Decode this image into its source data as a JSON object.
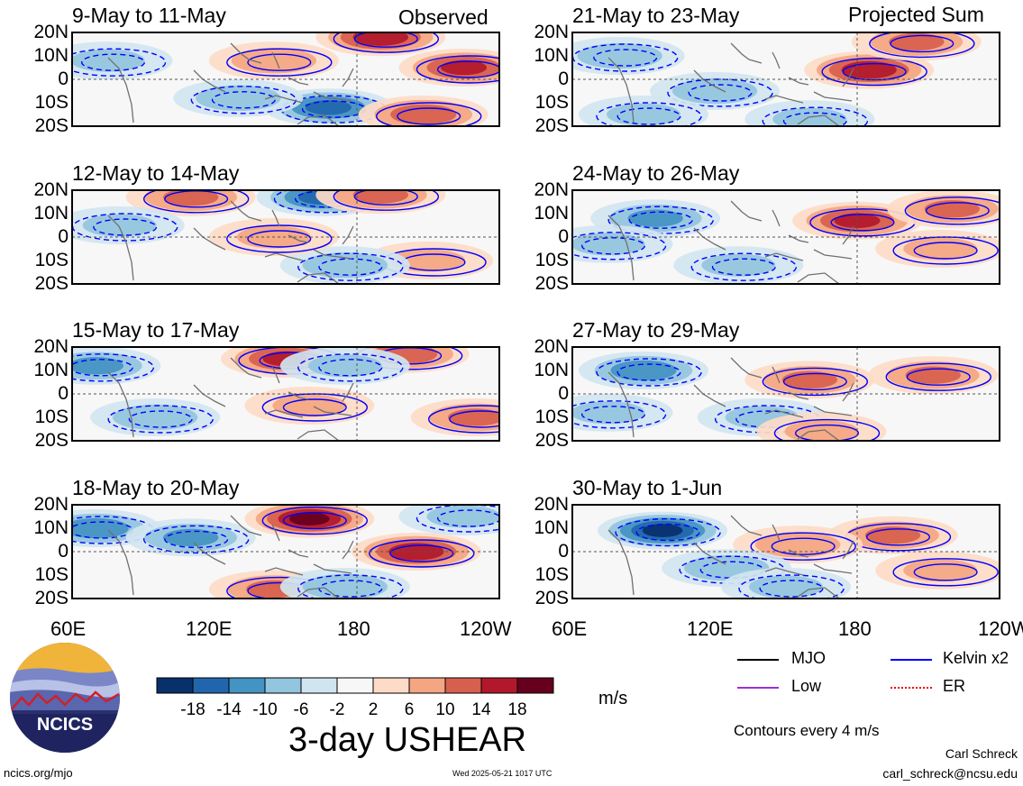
{
  "panel_headers": {
    "left": "Observed",
    "right": "Projected Sum"
  },
  "lat_ticks": [
    "20N",
    "10N",
    "0",
    "10S",
    "20S"
  ],
  "lon_ticks": [
    "60E",
    "120E",
    "180",
    "120W"
  ],
  "colorbar": {
    "tick_labels": [
      "-18",
      "-14",
      "-10",
      "-6",
      "-2",
      "2",
      "6",
      "10",
      "14",
      "18"
    ],
    "colors": [
      "#08306b",
      "#2166ac",
      "#4393c3",
      "#92c5de",
      "#d1e5f0",
      "#f7f7f7",
      "#fddbc7",
      "#f4a582",
      "#d6604d",
      "#b2182b",
      "#67001f"
    ],
    "unit": "m/s"
  },
  "main_title": "3-day USHEAR",
  "legend": {
    "items": [
      {
        "label": "MJO",
        "color": "#000000"
      },
      {
        "label": "Kelvin x2",
        "color": "#0000ff"
      },
      {
        "label": "Low",
        "color": "#9b30d9"
      },
      {
        "label": "ER",
        "color": "#e8000b"
      }
    ],
    "note": "Contours every 4 m/s"
  },
  "footer": {
    "logo_text": "NCICS",
    "url": "ncics.org/mjo",
    "timestamp": "Wed 2025-05-21 1017 UTC",
    "author": "Carl Schreck",
    "email": "carl_schreck@ncsu.edu"
  },
  "chart_data": {
    "type": "heatmap",
    "variable": "3-day USHEAR",
    "units": "m/s",
    "x_axis": {
      "ticks": [
        "60E",
        "120E",
        "180",
        "120W"
      ],
      "range": [
        "60E",
        "120W"
      ]
    },
    "y_axis": {
      "ticks": [
        "20N",
        "10N",
        "0",
        "10S",
        "20S"
      ],
      "range": [
        "20S",
        "20N"
      ]
    },
    "panels": [
      {
        "title": "9-May to 11-May",
        "group": "Observed",
        "hotspots": [
          {
            "lon": 168,
            "lat": -12,
            "value": -14
          },
          {
            "lon": 190,
            "lat": 18,
            "value": 16
          },
          {
            "lon": 225,
            "lat": 5,
            "value": 14
          },
          {
            "lon": 208,
            "lat": -15,
            "value": 12
          },
          {
            "lon": 75,
            "lat": 8,
            "value": -6
          },
          {
            "lon": 145,
            "lat": 8,
            "value": 8
          },
          {
            "lon": 130,
            "lat": -8,
            "value": -8
          }
        ]
      },
      {
        "title": "12-May to 14-May",
        "group": "Observed",
        "hotspots": [
          {
            "lon": 165,
            "lat": 17,
            "value": -14
          },
          {
            "lon": 110,
            "lat": 17,
            "value": 10
          },
          {
            "lon": 190,
            "lat": 18,
            "value": 10
          },
          {
            "lon": 210,
            "lat": -10,
            "value": 6
          },
          {
            "lon": 80,
            "lat": 5,
            "value": -6
          },
          {
            "lon": 175,
            "lat": -12,
            "value": -8
          },
          {
            "lon": 145,
            "lat": 0,
            "value": 6
          }
        ]
      },
      {
        "title": "15-May to 17-May",
        "group": "Observed",
        "hotspots": [
          {
            "lon": 150,
            "lat": 15,
            "value": 14
          },
          {
            "lon": 200,
            "lat": 17,
            "value": 12
          },
          {
            "lon": 70,
            "lat": 12,
            "value": -10
          },
          {
            "lon": 95,
            "lat": -10,
            "value": -8
          },
          {
            "lon": 230,
            "lat": -10,
            "value": 10
          },
          {
            "lon": 160,
            "lat": -5,
            "value": 6
          },
          {
            "lon": 175,
            "lat": 12,
            "value": -6
          }
        ]
      },
      {
        "title": "18-May to 20-May",
        "group": "Observed",
        "hotspots": [
          {
            "lon": 160,
            "lat": 14,
            "value": 18
          },
          {
            "lon": 205,
            "lat": 0,
            "value": 16
          },
          {
            "lon": 70,
            "lat": 10,
            "value": -12
          },
          {
            "lon": 110,
            "lat": 6,
            "value": -10
          },
          {
            "lon": 145,
            "lat": -16,
            "value": 10
          },
          {
            "lon": 175,
            "lat": -15,
            "value": -8
          },
          {
            "lon": 225,
            "lat": 15,
            "value": -6
          }
        ]
      },
      {
        "title": "21-May to 23-May",
        "group": "Projected Sum",
        "hotspots": [
          {
            "lon": 185,
            "lat": 4,
            "value": 16
          },
          {
            "lon": 205,
            "lat": 16,
            "value": 10
          },
          {
            "lon": 80,
            "lat": 10,
            "value": -8
          },
          {
            "lon": 120,
            "lat": -5,
            "value": -8
          },
          {
            "lon": 160,
            "lat": -17,
            "value": -6
          },
          {
            "lon": 90,
            "lat": -15,
            "value": -6
          }
        ]
      },
      {
        "title": "24-May to 26-May",
        "group": "Projected Sum",
        "hotspots": [
          {
            "lon": 180,
            "lat": 7,
            "value": 14
          },
          {
            "lon": 220,
            "lat": 12,
            "value": 10
          },
          {
            "lon": 215,
            "lat": -5,
            "value": 6
          },
          {
            "lon": 95,
            "lat": 8,
            "value": -10
          },
          {
            "lon": 75,
            "lat": -3,
            "value": -6
          },
          {
            "lon": 130,
            "lat": -12,
            "value": -6
          }
        ]
      },
      {
        "title": "27-May to 29-May",
        "group": "Projected Sum",
        "hotspots": [
          {
            "lon": 90,
            "lat": 10,
            "value": -12
          },
          {
            "lon": 160,
            "lat": 6,
            "value": 10
          },
          {
            "lon": 212,
            "lat": 8,
            "value": 10
          },
          {
            "lon": 140,
            "lat": -10,
            "value": -6
          },
          {
            "lon": 165,
            "lat": -16,
            "value": 6
          },
          {
            "lon": 75,
            "lat": -8,
            "value": -6
          }
        ]
      },
      {
        "title": "30-May to 1-Jun",
        "group": "Projected Sum",
        "hotspots": [
          {
            "lon": 98,
            "lat": 9,
            "value": -18
          },
          {
            "lon": 195,
            "lat": 7,
            "value": 10
          },
          {
            "lon": 155,
            "lat": 3,
            "value": 8
          },
          {
            "lon": 125,
            "lat": -7,
            "value": -8
          },
          {
            "lon": 150,
            "lat": -15,
            "value": -6
          },
          {
            "lon": 215,
            "lat": -8,
            "value": 6
          }
        ]
      }
    ]
  }
}
